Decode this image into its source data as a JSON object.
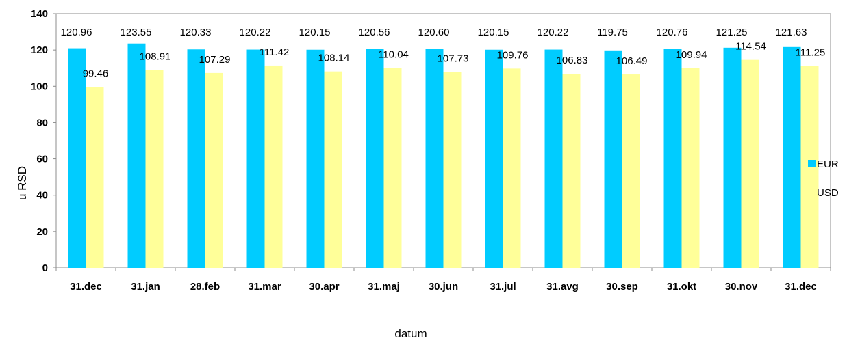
{
  "chart_data": {
    "type": "bar",
    "categories": [
      "31.dec",
      "31.jan",
      "28.feb",
      "31.mar",
      "30.apr",
      "31.maj",
      "30.jun",
      "31.jul",
      "31.avg",
      "30.sep",
      "31.okt",
      "30.nov",
      "31.dec"
    ],
    "series": [
      {
        "name": "EUR",
        "color": "#00CCFF",
        "values": [
          120.96,
          123.55,
          120.33,
          120.22,
          120.15,
          120.56,
          120.6,
          120.15,
          120.22,
          119.75,
          120.76,
          121.25,
          121.63
        ],
        "labels": [
          "120.96",
          "123.55",
          "120.33",
          "120.22",
          "120.15",
          "120.56",
          "120.60",
          "120.15",
          "120.22",
          "119.75",
          "120.76",
          "121.25",
          "121.63"
        ]
      },
      {
        "name": "USD",
        "color": "#FFFF99",
        "values": [
          99.46,
          108.91,
          107.29,
          111.42,
          108.14,
          110.04,
          107.73,
          109.76,
          106.83,
          106.49,
          109.94,
          114.54,
          111.25
        ],
        "labels": [
          "99.46",
          "108.91",
          "107.29",
          "111.42",
          "108.14",
          "110.04",
          "107.73",
          "109.76",
          "106.83",
          "106.49",
          "109.94",
          "114.54",
          "111.25"
        ]
      }
    ],
    "title": "",
    "xlabel": "datum",
    "ylabel": "u RSD",
    "ylim": [
      0,
      140
    ],
    "yticks": [
      "0",
      "20",
      "40",
      "60",
      "80",
      "100",
      "120",
      "140"
    ],
    "grid": false,
    "legend_position": "right"
  }
}
